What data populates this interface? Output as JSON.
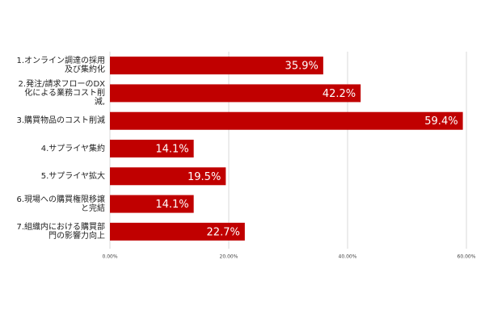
{
  "chart_data": {
    "type": "bar",
    "orientation": "horizontal",
    "categories": [
      "1.オンライン調達の採用及び集約化",
      "2.発注/請求フローのDX化による業務コスト削減,",
      "3.購買物品のコスト削減",
      "4.サプライヤ集約",
      "5.サプライヤ拡大",
      "6.現場への購買権限移譲と完結",
      "7.組織内における購買部門の影響力向上"
    ],
    "values": [
      35.9,
      42.2,
      59.4,
      14.1,
      19.5,
      14.1,
      22.7
    ],
    "value_labels": [
      "35.9%",
      "42.2%",
      "59.4%",
      "14.1%",
      "19.5%",
      "14.1%",
      "22.7%"
    ],
    "color": "#c00000",
    "xlim": [
      0,
      60
    ],
    "xticks": [
      {
        "value": 0,
        "label": "0.00%"
      },
      {
        "value": 20,
        "label": "20.00%"
      },
      {
        "value": 40,
        "label": "40.00%"
      },
      {
        "value": 60,
        "label": "60.00%"
      }
    ],
    "grid": true
  }
}
